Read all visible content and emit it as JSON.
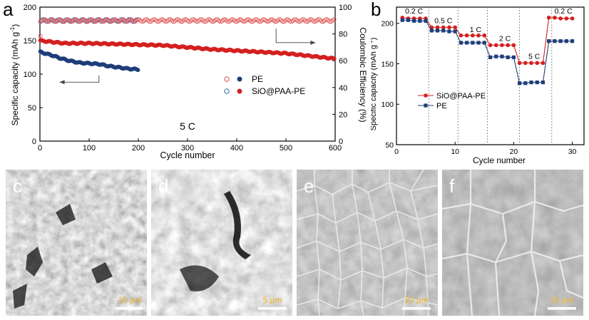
{
  "figure": {
    "panels": {
      "a": "a",
      "b": "b",
      "c": "c",
      "d": "d",
      "e": "e",
      "f": "f"
    },
    "sem": [
      {
        "letter": "c",
        "scale_label": "10 μm"
      },
      {
        "letter": "d",
        "scale_label": "5 μm"
      },
      {
        "letter": "e",
        "scale_label": "20 μm"
      },
      {
        "letter": "f",
        "scale_label": "10 μm"
      }
    ]
  },
  "chart_data": [
    {
      "id": "a",
      "type": "scatter",
      "title": "",
      "annotation": "5 C",
      "xlabel": "Cycle  number",
      "ylabel": "Specific capacity (mAh g",
      "ylabel_sup": "-1",
      "ylabel_close": ")",
      "ylabel_right": "Coulombic Efficiency (%)",
      "xlim": [
        0,
        600
      ],
      "ylim": [
        0,
        200
      ],
      "ylim_right": [
        0,
        100
      ],
      "xticks": [
        0,
        100,
        200,
        300,
        400,
        500,
        600
      ],
      "yticks": [
        0,
        50,
        100,
        150,
        200
      ],
      "yticks_right": [
        0,
        20,
        40,
        60,
        80,
        100
      ],
      "legend": {
        "placement": "center-right",
        "entries": [
          "PE",
          "SiO@PAA-PE"
        ]
      },
      "series": [
        {
          "name": "PE",
          "kind": "capacity",
          "axis": "left",
          "color": "#1f3d7a",
          "filled": true,
          "x": [
            1,
            10,
            25,
            40,
            60,
            80,
            100,
            120,
            140,
            160,
            180,
            200
          ],
          "y": [
            133,
            131,
            128,
            124,
            120,
            117,
            116,
            115,
            112,
            110,
            108,
            107
          ]
        },
        {
          "name": "SiO@PAA-PE",
          "kind": "capacity",
          "axis": "left",
          "color": "#d42020",
          "filled": true,
          "x": [
            1,
            25,
            50,
            100,
            150,
            200,
            250,
            300,
            350,
            400,
            450,
            500,
            550,
            600
          ],
          "y": [
            150,
            148,
            146,
            146,
            145,
            144,
            143,
            140,
            137,
            135,
            133,
            131,
            127,
            123
          ]
        },
        {
          "name": "PE",
          "kind": "efficiency",
          "axis": "right",
          "color": "#3b6fae",
          "filled": false,
          "x": [
            1,
            50,
            100,
            150,
            200
          ],
          "y": [
            90,
            90,
            90,
            90,
            90
          ]
        },
        {
          "name": "SiO@PAA-PE",
          "kind": "efficiency",
          "axis": "right",
          "color": "#e05050",
          "filled": false,
          "x": [
            1,
            100,
            200,
            300,
            400,
            500,
            600
          ],
          "y": [
            90,
            90,
            90,
            90,
            90,
            90,
            90
          ]
        }
      ]
    },
    {
      "id": "b",
      "type": "line",
      "title": "",
      "xlabel": "Cycle number",
      "ylabel": "Specific capacity (mAh g",
      "ylabel_sup": "-1",
      "ylabel_close": ")",
      "xlim": [
        0,
        32
      ],
      "ylim": [
        50,
        220
      ],
      "xticks": [
        0,
        10,
        20,
        30
      ],
      "yticks": [
        50,
        100,
        150,
        200
      ],
      "rate_labels": [
        {
          "label": "0.2 C",
          "x": 3,
          "y": 212
        },
        {
          "label": "0.5 C",
          "x": 8,
          "y": 200
        },
        {
          "label": "1 C",
          "x": 13.5,
          "y": 189
        },
        {
          "label": "2 C",
          "x": 18.5,
          "y": 178
        },
        {
          "label": "5 C",
          "x": 23.5,
          "y": 156
        },
        {
          "label": "0.2 C",
          "x": 28.5,
          "y": 212
        }
      ],
      "dividers": [
        5.5,
        10.5,
        15.5,
        21,
        26.5
      ],
      "legend": {
        "placement": "center-left",
        "entries": [
          "SiO@PAA-PE",
          "PE"
        ]
      },
      "series": [
        {
          "name": "SiO@PAA-PE",
          "color": "#d42020",
          "marker": "circle",
          "x": [
            1,
            2,
            3,
            4,
            5,
            6,
            7,
            8,
            9,
            10,
            11,
            12,
            13,
            14,
            15,
            16,
            17,
            18,
            19,
            20,
            21,
            22,
            23,
            24,
            25,
            26,
            27,
            28,
            29,
            30
          ],
          "y": [
            207,
            206,
            206,
            206,
            206,
            195,
            195,
            195,
            195,
            195,
            185,
            185,
            185,
            185,
            185,
            173,
            173,
            173,
            173,
            173,
            151,
            151,
            151,
            151,
            151,
            207,
            207,
            206,
            206,
            206
          ]
        },
        {
          "name": "PE",
          "color": "#1f3d7a",
          "marker": "square",
          "x": [
            1,
            2,
            3,
            4,
            5,
            6,
            7,
            8,
            9,
            10,
            11,
            12,
            13,
            14,
            15,
            16,
            17,
            18,
            19,
            20,
            21,
            22,
            23,
            24,
            25,
            26,
            27,
            28,
            29,
            30
          ],
          "y": [
            204,
            204,
            203,
            203,
            203,
            191,
            191,
            191,
            190,
            190,
            176,
            176,
            176,
            176,
            176,
            158,
            159,
            159,
            158,
            158,
            126,
            126,
            127,
            127,
            127,
            178,
            178,
            178,
            178,
            178
          ]
        }
      ]
    }
  ]
}
